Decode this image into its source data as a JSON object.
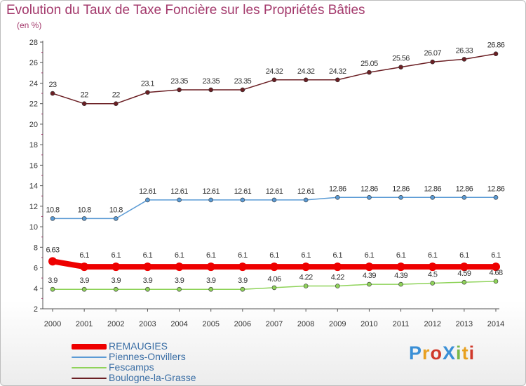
{
  "title": "Evolution du Taux de Taxe Foncière sur les Propriétés Bâties",
  "unit": "(en %)",
  "logo": {
    "text": "ProXiti",
    "colors": [
      "#3a8fd6",
      "#e8a020",
      "#d0392b",
      "#3a8fd6",
      "#7ab848",
      "#e8a020",
      "#d0392b"
    ]
  },
  "chart_data": {
    "type": "line",
    "x": [
      "2000",
      "2001",
      "2002",
      "2003",
      "2004",
      "2005",
      "2006",
      "2007",
      "2008",
      "2009",
      "2010",
      "2011",
      "2012",
      "2013",
      "2014"
    ],
    "ylim": [
      2,
      28
    ],
    "yticks": [
      "2",
      "4",
      "6",
      "8",
      "10",
      "12",
      "14",
      "16",
      "18",
      "20",
      "22",
      "24",
      "26",
      "28"
    ],
    "grid": false,
    "legend_position": "bottom-left",
    "series": [
      {
        "name": "Boulogne-la-Grasse",
        "color": "#6b1f24",
        "values": [
          23,
          22,
          22,
          23.1,
          23.35,
          23.35,
          23.35,
          24.32,
          24.32,
          24.32,
          25.05,
          25.56,
          26.07,
          26.33,
          26.86
        ],
        "labels": [
          "23",
          "22",
          "22",
          "23.1",
          "23.35",
          "23.35",
          "23.35",
          "24.32",
          "24.32",
          "24.32",
          "25.05",
          "25.56",
          "26.07",
          "26.33",
          "26.86"
        ]
      },
      {
        "name": "Piennes-Onvillers",
        "color": "#5b9bd5",
        "values": [
          10.8,
          10.8,
          10.8,
          12.61,
          12.61,
          12.61,
          12.61,
          12.61,
          12.61,
          12.86,
          12.86,
          12.86,
          12.86,
          12.86,
          12.86
        ],
        "labels": [
          "10.8",
          "10.8",
          "10.8",
          "12.61",
          "12.61",
          "12.61",
          "12.61",
          "12.61",
          "12.61",
          "12.86",
          "12.86",
          "12.86",
          "12.86",
          "12.86",
          "12.86"
        ]
      },
      {
        "name": "REMAUGIES",
        "color": "#ee0000",
        "values": [
          6.63,
          6.1,
          6.1,
          6.1,
          6.1,
          6.1,
          6.1,
          6.1,
          6.1,
          6.1,
          6.1,
          6.1,
          6.1,
          6.1,
          6.1
        ],
        "labels": [
          "6.63",
          "6.1",
          "6.1",
          "6.1",
          "6.1",
          "6.1",
          "6.1",
          "6.1",
          "6.1",
          "6.1",
          "6.1",
          "6.1",
          "6.1",
          "6.1",
          "6.1"
        ]
      },
      {
        "name": "Fescamps",
        "color": "#8fd35a",
        "values": [
          3.9,
          3.9,
          3.9,
          3.9,
          3.9,
          3.9,
          3.9,
          4.06,
          4.22,
          4.22,
          4.39,
          4.39,
          4.5,
          4.59,
          4.68
        ],
        "labels": [
          "3.9",
          "3.9",
          "3.9",
          "3.9",
          "3.9",
          "3.9",
          "3.9",
          "4.06",
          "4.22",
          "4.22",
          "4.39",
          "4.39",
          "4.5",
          "4.59",
          "4.68"
        ]
      }
    ],
    "legend": [
      {
        "name": "REMAUGIES",
        "color": "#ee0000"
      },
      {
        "name": "Piennes-Onvillers",
        "color": "#5b9bd5"
      },
      {
        "name": "Fescamps",
        "color": "#8fd35a"
      },
      {
        "name": "Boulogne-la-Grasse",
        "color": "#6b1f24"
      }
    ]
  }
}
